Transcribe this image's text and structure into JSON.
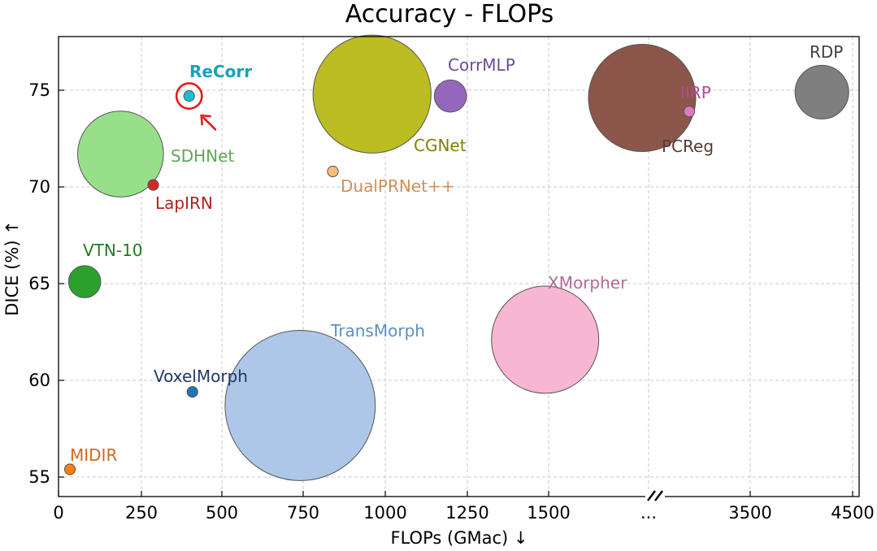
{
  "chart_data": {
    "type": "scatter",
    "title": "Accuracy - FLOPs",
    "xlabel": "FLOPs (GMac) ↓",
    "ylabel": "DICE (%) ↑",
    "x_ticks": [
      "0",
      "250",
      "500",
      "750",
      "1000",
      "1250",
      "1500",
      "...",
      "3500",
      "4500"
    ],
    "y_ticks": [
      "55",
      "60",
      "65",
      "70",
      "75"
    ],
    "ylim": [
      54,
      77.8
    ],
    "x_axis_break": "...",
    "grid": true,
    "points": [
      {
        "name": "ReCorr",
        "flops": 400,
        "dice": 74.7,
        "size": 1,
        "color": "#17becf",
        "label_color": "#17a2b8",
        "bold": true,
        "highlighted": true
      },
      {
        "name": "SDHNet",
        "flops": 190,
        "dice": 71.7,
        "size": 8,
        "color": "#98df8a",
        "label_color": "#5ea65a"
      },
      {
        "name": "LapIRN",
        "flops": 290,
        "dice": 70.1,
        "size": 1,
        "color": "#d62728",
        "label_color": "#b22222"
      },
      {
        "name": "VTN-10",
        "flops": 80,
        "dice": 65.1,
        "size": 3,
        "color": "#2ca02c",
        "label_color": "#237a23"
      },
      {
        "name": "VoxelMorph",
        "flops": 410,
        "dice": 59.4,
        "size": 1,
        "color": "#1f77b4",
        "label_color": "#1f3b66"
      },
      {
        "name": "MIDIR",
        "flops": 35,
        "dice": 55.4,
        "size": 1,
        "color": "#ff7f0e",
        "label_color": "#d2691e"
      },
      {
        "name": "TransMorph",
        "flops": 740,
        "dice": 58.7,
        "size": 14,
        "color": "#aec7e8",
        "label_color": "#5d8fbf"
      },
      {
        "name": "CGNet",
        "flops": 960,
        "dice": 74.8,
        "size": 11,
        "color": "#bcbd22",
        "label_color": "#808000"
      },
      {
        "name": "CorrMLP",
        "flops": 1200,
        "dice": 74.7,
        "size": 3,
        "color": "#9467bd",
        "label_color": "#6a4c9c"
      },
      {
        "name": "DualPRNet++",
        "flops": 840,
        "dice": 70.8,
        "size": 1,
        "color": "#ffbb78",
        "label_color": "#d2905a"
      },
      {
        "name": "XMorpher",
        "flops": 1490,
        "dice": 62.1,
        "size": 10,
        "color": "#f7b6d2",
        "label_color": "#b06a97"
      },
      {
        "name": "PCReg",
        "flops": 1730,
        "dice": 74.6,
        "size": 10,
        "color": "#8c564b",
        "label_color": "#5a3a30"
      },
      {
        "name": "IIRP",
        "flops": 1850,
        "dice": 73.9,
        "size": 1,
        "color": "#e377c2",
        "label_color": "#b5479a"
      },
      {
        "name": "RDP",
        "flops": 4200,
        "dice": 74.9,
        "size": 5,
        "color": "#7f7f7f",
        "label_color": "#404040"
      }
    ]
  }
}
